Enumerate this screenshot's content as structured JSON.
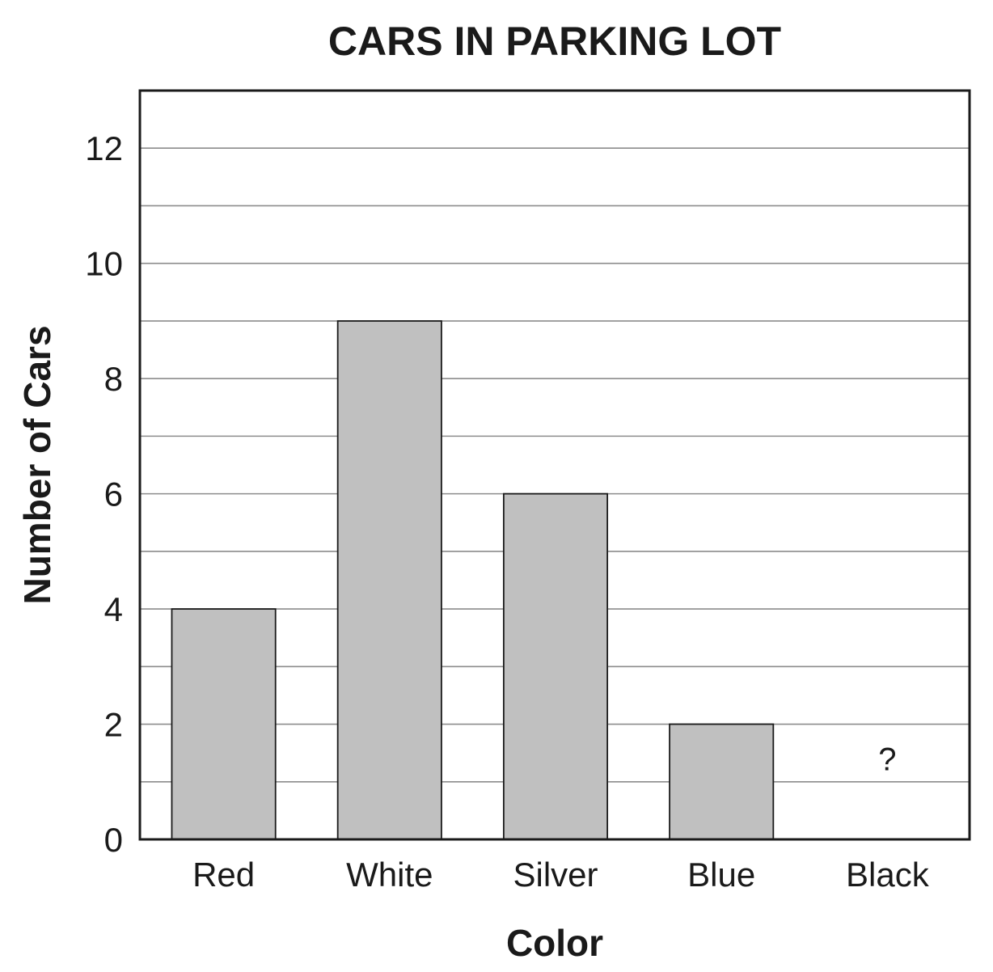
{
  "chart_data": {
    "type": "bar",
    "title": "CARS IN PARKING LOT",
    "xlabel": "Color",
    "ylabel": "Number of Cars",
    "categories": [
      "Red",
      "White",
      "Silver",
      "Blue",
      "Black"
    ],
    "values": [
      4,
      9,
      6,
      2,
      null
    ],
    "value_labels": [
      "",
      "",
      "",
      "",
      "?"
    ],
    "ylim": [
      0,
      13
    ],
    "yticks": [
      0,
      2,
      4,
      6,
      8,
      10,
      12
    ],
    "ytick_labels": [
      "0",
      "2",
      "4",
      "6",
      "8",
      "10",
      "12"
    ],
    "grid_step": 1,
    "grid": true,
    "legend": "none",
    "colors": {
      "bar_fill": "#c0c0c0",
      "bar_stroke": "#1a1a1a",
      "grid": "#8c8c8c",
      "frame": "#1a1a1a",
      "text": "#1a1a1a"
    }
  }
}
